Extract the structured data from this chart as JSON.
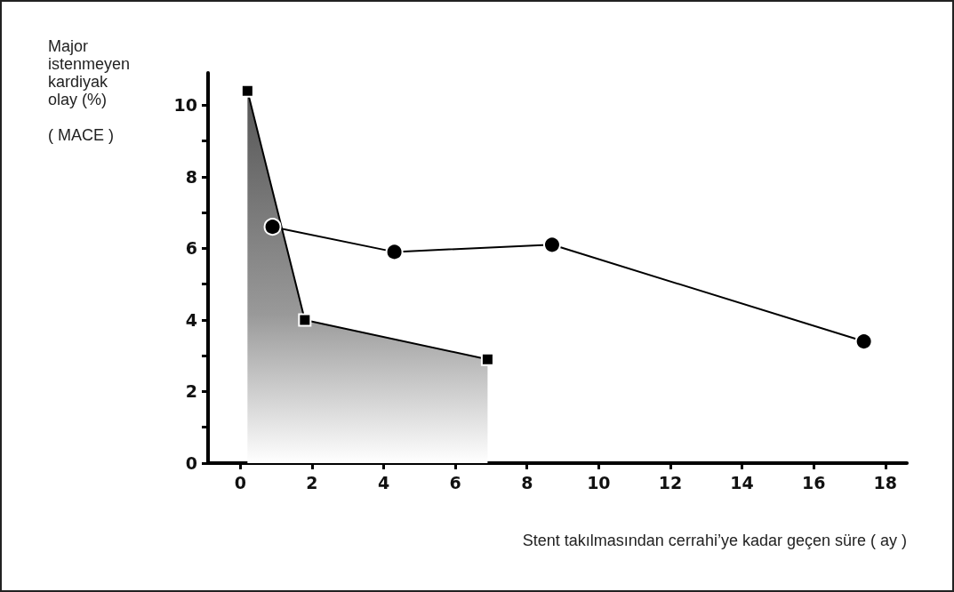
{
  "chart_data": {
    "type": "line",
    "xlabel": "Stent takılmasından cerrahi’ye kadar geçen süre ( ay )",
    "ylabel": "Major\nistenmeyen\nkardiyak\nolay (%)\n\n( MACE )",
    "series": [
      {
        "type": "area",
        "color": "#000000",
        "marker": "square",
        "x": [
          0.2,
          1.8,
          6.9
        ],
        "values": [
          10.4,
          4.0,
          2.9
        ]
      },
      {
        "color": "#000000",
        "marker": "circle",
        "x": [
          0.9,
          4.3,
          8.7,
          17.4
        ],
        "values": [
          6.6,
          5.9,
          6.1,
          3.4
        ]
      }
    ],
    "xlim": [
      -0.9,
      18.6
    ],
    "xticks": [
      0,
      2,
      4,
      6,
      8,
      10,
      12,
      14,
      16,
      18
    ],
    "ylim": [
      0,
      10.9
    ],
    "yticks": [
      0,
      {
        "value": 1,
        "label": null
      },
      2,
      {
        "value": 3,
        "label": null
      },
      4,
      {
        "value": 5,
        "label": null
      },
      6,
      {
        "value": 7,
        "label": null
      },
      8,
      {
        "value": 9,
        "label": null
      },
      10
    ],
    "grid": false,
    "line_style": "solid"
  }
}
